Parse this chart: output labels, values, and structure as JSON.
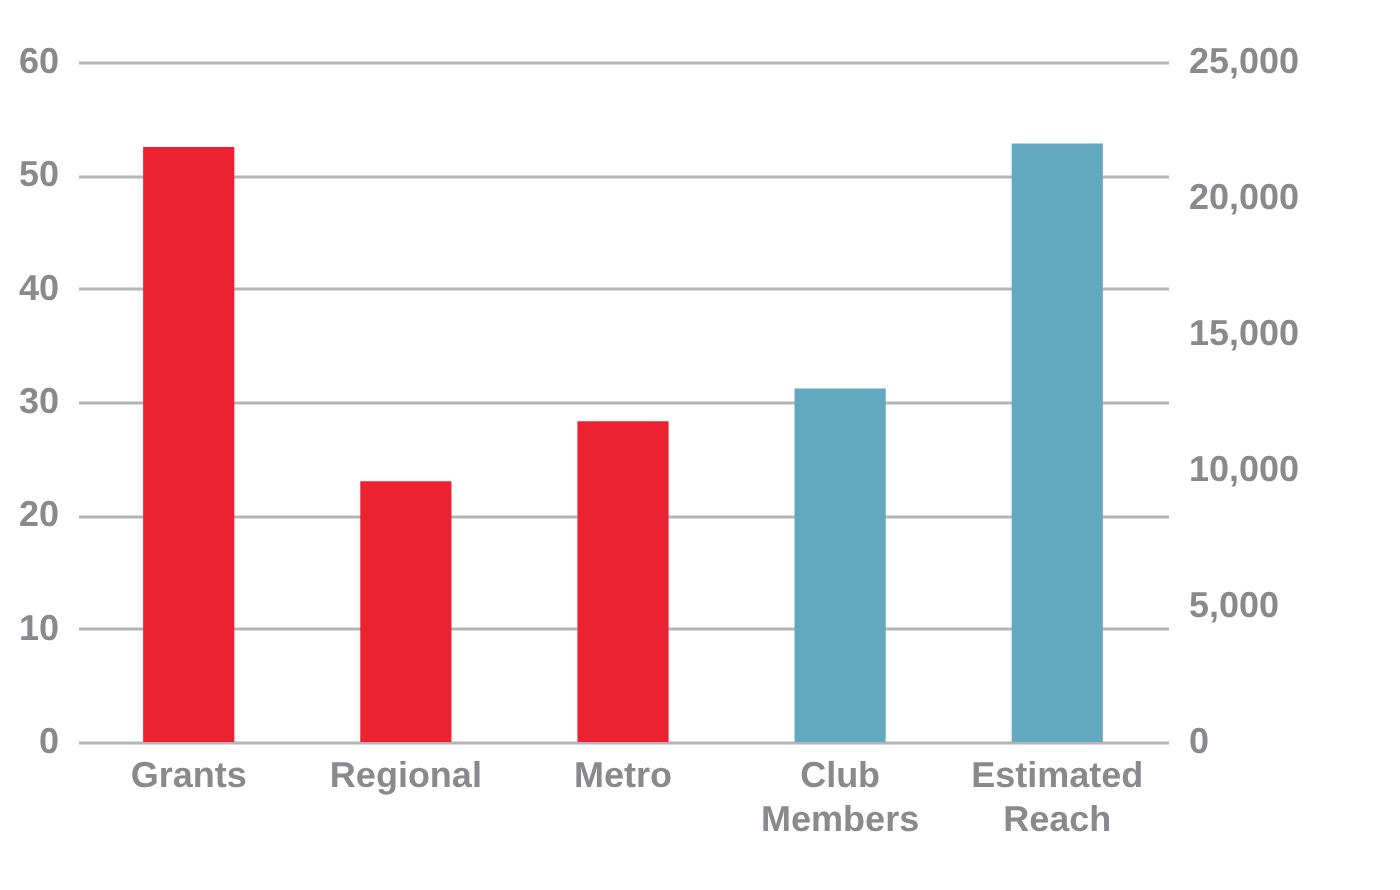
{
  "chart_data": {
    "type": "bar",
    "categories": [
      "Grants",
      "Regional",
      "Metro",
      "Club Members",
      "Estimated Reach"
    ],
    "series": [
      {
        "color": "#ec2232",
        "values": [
          52.5,
          23,
          28.3,
          null,
          null
        ]
      },
      {
        "color": "#62a9bf",
        "axis": "y2",
        "values": [
          null,
          null,
          null,
          13000,
          22000
        ]
      }
    ],
    "ylim": [
      0,
      60
    ],
    "yticks": [
      0,
      10,
      20,
      30,
      40,
      50,
      60
    ],
    "y2lim": [
      0,
      25000
    ],
    "y2ticks": [
      {
        "value": 0,
        "label": "0"
      },
      {
        "value": 5000,
        "label": "5,000"
      },
      {
        "value": 10000,
        "label": "10,000"
      },
      {
        "value": 15000,
        "label": "15,000"
      },
      {
        "value": 20000,
        "label": "20,000"
      },
      {
        "value": 25000,
        "label": "25,000"
      }
    ],
    "grid": "y"
  }
}
